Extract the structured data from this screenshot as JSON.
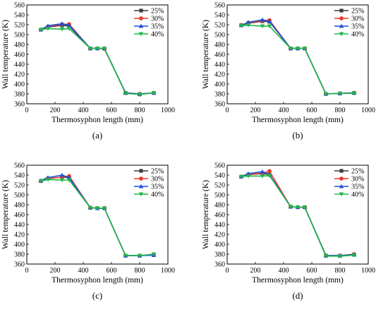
{
  "chart_data": [
    {
      "panel": "(a)",
      "type": "line",
      "xlabel": "Thermosyphon length (mm)",
      "ylabel": "Wall temperature (K)",
      "xlim": [
        0,
        1000
      ],
      "ylim": [
        360,
        560
      ],
      "xticks": [
        0,
        200,
        400,
        600,
        800,
        1000
      ],
      "yticks": [
        360,
        380,
        400,
        420,
        440,
        460,
        480,
        500,
        520,
        540,
        560
      ],
      "grid": false,
      "legend_position": "top-right",
      "x": [
        100,
        150,
        250,
        300,
        450,
        500,
        550,
        700,
        800,
        900
      ],
      "series": [
        {
          "name": "25%",
          "color": "#3c3c3c",
          "marker": "square",
          "values": [
            510,
            515,
            519,
            517,
            472,
            472,
            472,
            382,
            379,
            382
          ]
        },
        {
          "name": "30%",
          "color": "#e8392b",
          "marker": "circle",
          "values": [
            510,
            516,
            521,
            521,
            472,
            472,
            471,
            382,
            380,
            382
          ]
        },
        {
          "name": "35%",
          "color": "#1f4fd8",
          "marker": "triangle-up",
          "values": [
            510,
            518,
            522,
            519,
            472,
            472,
            472,
            382,
            380,
            382
          ]
        },
        {
          "name": "40%",
          "color": "#1fb84a",
          "marker": "triangle-down",
          "values": [
            510,
            512,
            511,
            512,
            472,
            472,
            472,
            381,
            379,
            382
          ]
        }
      ]
    },
    {
      "panel": "(b)",
      "type": "line",
      "xlabel": "Thermosyphon length (mm)",
      "ylabel": "Wall temperature (K)",
      "xlim": [
        0,
        1000
      ],
      "ylim": [
        360,
        560
      ],
      "xticks": [
        0,
        200,
        400,
        600,
        800,
        1000
      ],
      "yticks": [
        360,
        380,
        400,
        420,
        440,
        460,
        480,
        500,
        520,
        540,
        560
      ],
      "grid": false,
      "legend_position": "top-right",
      "x": [
        100,
        150,
        250,
        300,
        450,
        500,
        550,
        700,
        800,
        900
      ],
      "series": [
        {
          "name": "25%",
          "color": "#3c3c3c",
          "marker": "square",
          "values": [
            519,
            523,
            527,
            526,
            472,
            472,
            472,
            380,
            381,
            382
          ]
        },
        {
          "name": "30%",
          "color": "#e8392b",
          "marker": "circle",
          "values": [
            519,
            524,
            528,
            529,
            472,
            472,
            472,
            380,
            381,
            382
          ]
        },
        {
          "name": "35%",
          "color": "#1f4fd8",
          "marker": "triangle-up",
          "values": [
            519,
            525,
            530,
            527,
            472,
            472,
            472,
            380,
            381,
            382
          ]
        },
        {
          "name": "40%",
          "color": "#1fb84a",
          "marker": "triangle-down",
          "values": [
            518,
            519,
            517,
            517,
            472,
            472,
            472,
            380,
            381,
            381
          ]
        }
      ]
    },
    {
      "panel": "(c)",
      "type": "line",
      "xlabel": "Thermosyphon length (mm)",
      "ylabel": "Wall temperature (K)",
      "xlim": [
        0,
        1000
      ],
      "ylim": [
        360,
        560
      ],
      "xticks": [
        0,
        200,
        400,
        600,
        800,
        1000
      ],
      "yticks": [
        360,
        380,
        400,
        420,
        440,
        460,
        480,
        500,
        520,
        540,
        560
      ],
      "grid": false,
      "legend_position": "top-right",
      "x": [
        100,
        150,
        250,
        300,
        450,
        500,
        550,
        700,
        800,
        900
      ],
      "series": [
        {
          "name": "25%",
          "color": "#3c3c3c",
          "marker": "square",
          "values": [
            528,
            533,
            536,
            535,
            474,
            473,
            473,
            377,
            377,
            379
          ]
        },
        {
          "name": "30%",
          "color": "#e8392b",
          "marker": "circle",
          "values": [
            528,
            533,
            536,
            538,
            474,
            473,
            473,
            377,
            377,
            379
          ]
        },
        {
          "name": "35%",
          "color": "#1f4fd8",
          "marker": "triangle-up",
          "values": [
            529,
            535,
            540,
            535,
            474,
            473,
            473,
            377,
            377,
            378
          ]
        },
        {
          "name": "40%",
          "color": "#1fb84a",
          "marker": "triangle-down",
          "values": [
            528,
            531,
            530,
            530,
            474,
            473,
            473,
            377,
            377,
            380
          ]
        }
      ]
    },
    {
      "panel": "(d)",
      "type": "line",
      "xlabel": "Thermosyphon length (mm)",
      "ylabel": "Wall temperature (K)",
      "xlim": [
        0,
        1000
      ],
      "ylim": [
        360,
        560
      ],
      "xticks": [
        0,
        200,
        400,
        600,
        800,
        1000
      ],
      "yticks": [
        360,
        380,
        400,
        420,
        440,
        460,
        480,
        500,
        520,
        540,
        560
      ],
      "grid": false,
      "legend_position": "top-right",
      "x": [
        100,
        150,
        250,
        300,
        450,
        500,
        550,
        700,
        800,
        900
      ],
      "series": [
        {
          "name": "25%",
          "color": "#3c3c3c",
          "marker": "square",
          "values": [
            537,
            541,
            543,
            541,
            476,
            475,
            475,
            377,
            377,
            379
          ]
        },
        {
          "name": "30%",
          "color": "#e8392b",
          "marker": "circle",
          "values": [
            537,
            541,
            544,
            548,
            476,
            475,
            475,
            377,
            377,
            380
          ]
        },
        {
          "name": "35%",
          "color": "#1f4fd8",
          "marker": "triangle-up",
          "values": [
            537,
            543,
            547,
            541,
            476,
            475,
            475,
            377,
            377,
            379
          ]
        },
        {
          "name": "40%",
          "color": "#1fb84a",
          "marker": "triangle-down",
          "values": [
            537,
            538,
            538,
            539,
            476,
            475,
            475,
            376,
            376,
            378
          ]
        }
      ]
    }
  ]
}
